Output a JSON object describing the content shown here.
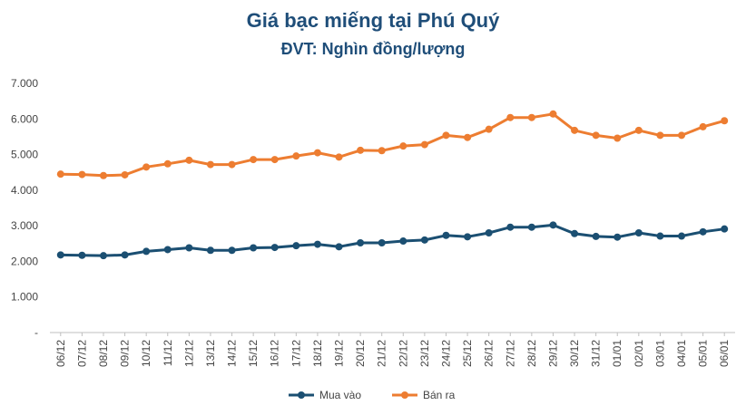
{
  "chart_data": {
    "type": "line",
    "title": "Giá bạc miếng tại Phú Quý",
    "subtitle": "ĐVT: Nghìn đồng/lượng",
    "xlabel": "",
    "ylabel": "",
    "categories": [
      "06/12",
      "07/12",
      "08/12",
      "09/12",
      "10/12",
      "11/12",
      "12/12",
      "13/12",
      "14/12",
      "15/12",
      "16/12",
      "17/12",
      "18/12",
      "19/12",
      "20/12",
      "21/12",
      "22/12",
      "23/12",
      "24/12",
      "25/12",
      "26/12",
      "27/12",
      "28/12",
      "29/12",
      "30/12",
      "31/12",
      "01/01",
      "02/01",
      "03/01",
      "04/01",
      "05/01",
      "06/01"
    ],
    "ylim": [
      0,
      7000
    ],
    "yticks": [
      {
        "value": 0,
        "label": "-"
      },
      {
        "value": 1000,
        "label": "1.000"
      },
      {
        "value": 2000,
        "label": "2.000"
      },
      {
        "value": 3000,
        "label": "3.000"
      },
      {
        "value": 4000,
        "label": "4.000"
      },
      {
        "value": 5000,
        "label": "5.000"
      },
      {
        "value": 6000,
        "label": "6.000"
      },
      {
        "value": 7000,
        "label": "7.000"
      }
    ],
    "grid": false,
    "legend_position": "bottom",
    "series": [
      {
        "name": "Mua vào",
        "color": "#1b4f72",
        "values": [
          2180,
          2170,
          2160,
          2180,
          2280,
          2330,
          2380,
          2310,
          2310,
          2380,
          2390,
          2440,
          2480,
          2410,
          2520,
          2520,
          2570,
          2600,
          2730,
          2690,
          2800,
          2960,
          2960,
          3020,
          2780,
          2700,
          2680,
          2800,
          2710,
          2710,
          2830,
          2910
        ]
      },
      {
        "name": "Bán ra",
        "color": "#ed7d31",
        "values": [
          4450,
          4440,
          4410,
          4430,
          4650,
          4740,
          4840,
          4720,
          4720,
          4860,
          4860,
          4960,
          5050,
          4930,
          5120,
          5110,
          5240,
          5280,
          5540,
          5480,
          5710,
          6040,
          6040,
          6140,
          5680,
          5540,
          5460,
          5680,
          5540,
          5540,
          5780,
          5950
        ]
      }
    ]
  }
}
